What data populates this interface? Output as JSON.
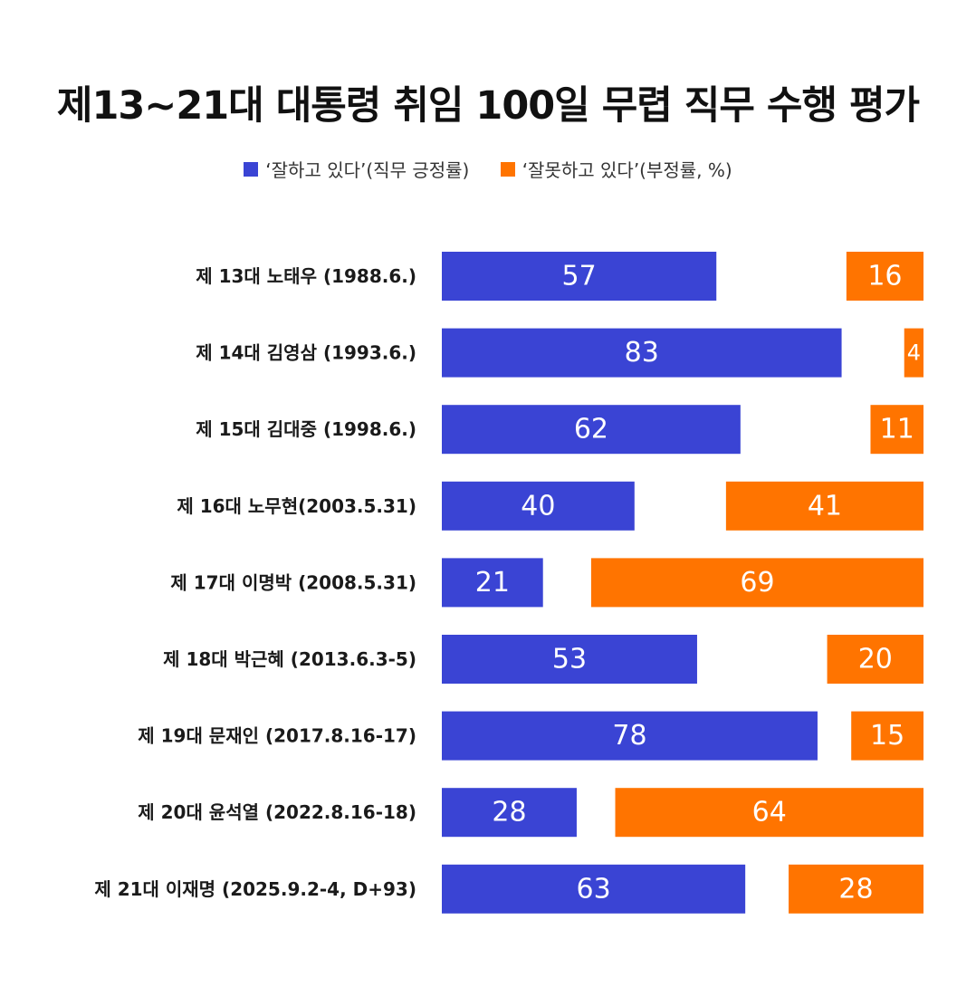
{
  "title": "제13~21대 대통령 취임 100일 무렵 직무 수행 평가",
  "legend": {
    "positive_label": "‘잘하고 있다’(직무 긍정률)",
    "negative_label": "‘잘못하고 있다’(부정률, %)"
  },
  "colors": {
    "positive": "#3a44d4",
    "negative": "#ff7400"
  },
  "chart_data": {
    "type": "bar",
    "orientation": "horizontal",
    "title": "제13~21대 대통령 취임 100일 무렵 직무 수행 평가",
    "legend_position": "top",
    "grid": false,
    "categories": [
      "제 13대 노태우 (1988.6.)",
      "제 14대 김영삼 (1993.6.)",
      "제 15대 김대중 (1998.6.)",
      "제 16대 노무현(2003.5.31)",
      "제 17대 이명박 (2008.5.31)",
      "제 18대 박근혜 (2013.6.3-5)",
      "제 19대 문재인 (2017.8.16-17)",
      "제 20대 윤석열 (2022.8.16-18)",
      "제 21대 이재명 (2025.9.2-4, D+93)"
    ],
    "series": [
      {
        "name": "‘잘하고 있다’(직무 긍정률)",
        "values": [
          57,
          83,
          62,
          40,
          21,
          53,
          78,
          28,
          63
        ]
      },
      {
        "name": "‘잘못하고 있다’(부정률, %)",
        "values": [
          16,
          4,
          11,
          41,
          69,
          20,
          15,
          64,
          28
        ]
      }
    ],
    "xlim": [
      0,
      100
    ]
  }
}
